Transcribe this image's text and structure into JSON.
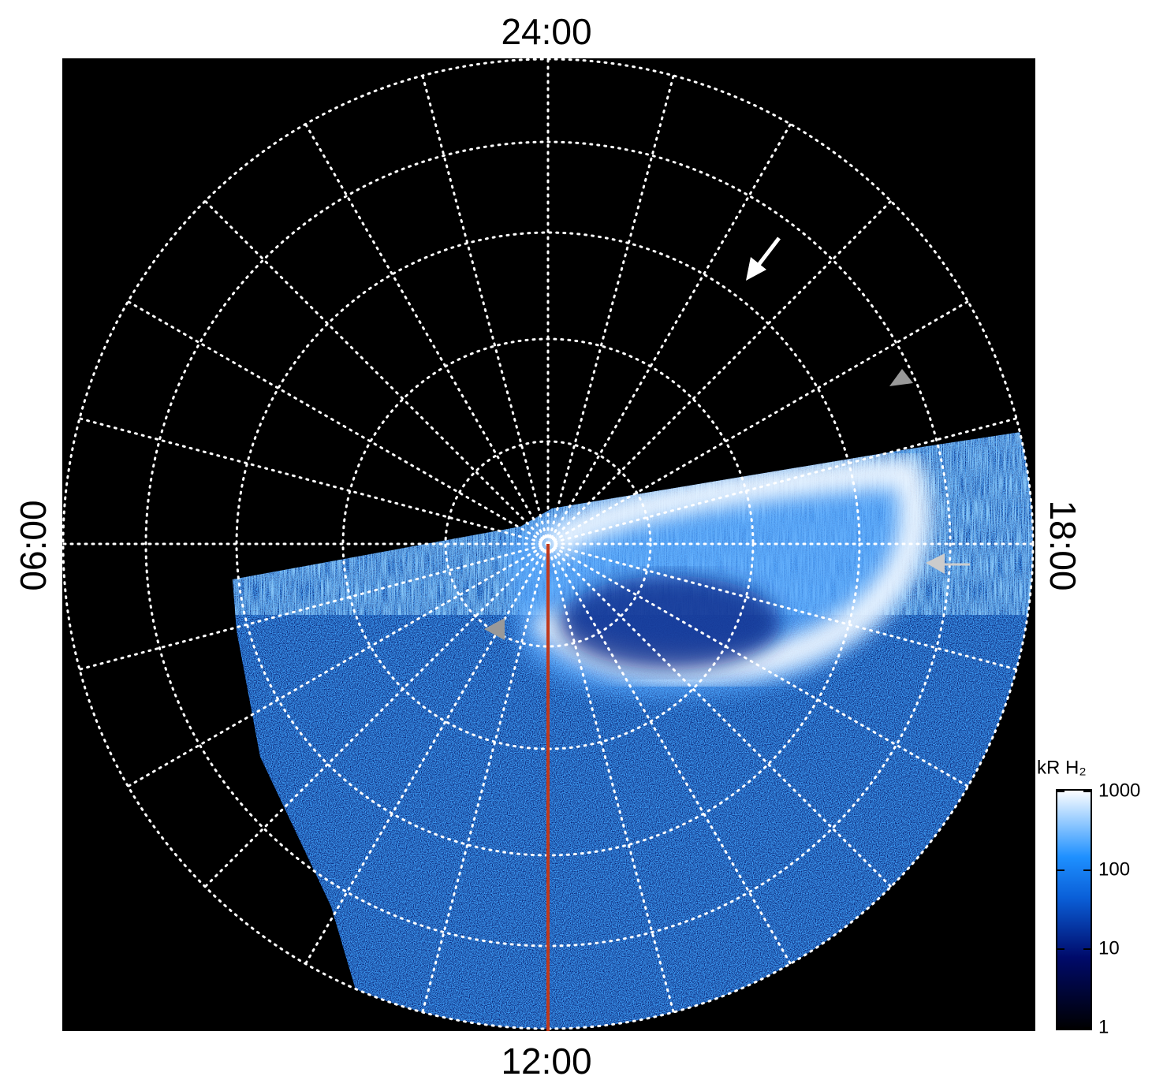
{
  "local_time_labels": {
    "top": "24:00",
    "bottom": "12:00",
    "left": "06:00",
    "right": "18:00"
  },
  "colorbar": {
    "label": "kR H₂",
    "lim": [
      1,
      1000
    ],
    "log": true,
    "ticks": [
      1,
      10,
      100,
      1000
    ]
  }
}
